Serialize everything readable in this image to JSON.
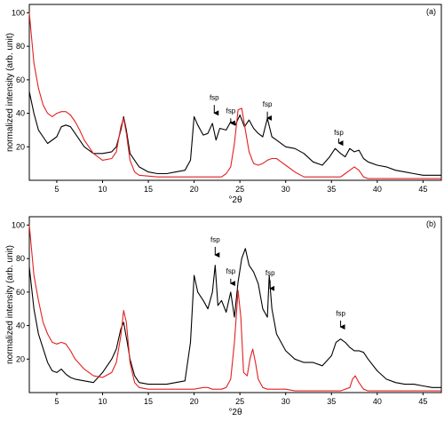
{
  "chart_data": [
    {
      "type": "line",
      "panel_label": "(a)",
      "xlabel": "°2θ",
      "ylabel": "normalized intensity (arb. unit)",
      "xlim": [
        2,
        47
      ],
      "ylim": [
        0,
        105
      ],
      "xticks": [
        "5",
        "10",
        "15",
        "20",
        "25",
        "30",
        "35",
        "40",
        "45"
      ],
      "yticks": [
        "20",
        "40",
        "60",
        "80",
        "100"
      ],
      "grid": false,
      "series": [
        {
          "color": "#000000",
          "x": [
            2,
            2.5,
            3,
            4,
            5,
            5.5,
            6,
            6.5,
            7,
            8,
            9,
            10,
            11,
            11.5,
            12,
            12.3,
            12.6,
            13,
            14,
            15,
            16,
            17,
            18,
            19,
            19.6,
            20,
            20.4,
            21,
            21.5,
            22,
            22.4,
            22.8,
            23.5,
            24,
            24.5,
            25,
            25.5,
            26,
            26.5,
            27,
            27.5,
            28,
            28.5,
            29,
            30,
            31,
            32,
            33,
            34,
            34.8,
            35.4,
            36,
            36.5,
            37,
            37.5,
            38,
            38.5,
            39,
            40,
            41,
            42,
            43,
            44,
            45,
            46,
            47
          ],
          "y": [
            53,
            40,
            30,
            22,
            26,
            32,
            33,
            32,
            28,
            20,
            16,
            16,
            17,
            20,
            30,
            38,
            30,
            16,
            8,
            5,
            4,
            4,
            5,
            6,
            12,
            38,
            33,
            27,
            28,
            34,
            24,
            31,
            30,
            35,
            33,
            39,
            32,
            36,
            31,
            28,
            26,
            37,
            26,
            24,
            20,
            19,
            16,
            11,
            9,
            14,
            19,
            16,
            14,
            19,
            17,
            18,
            13,
            11,
            9,
            8,
            6,
            5,
            4,
            3,
            3,
            3
          ]
        },
        {
          "color": "#e32020",
          "x": [
            2,
            2.5,
            3,
            3.5,
            4,
            4.5,
            5,
            5.5,
            6,
            6.5,
            7,
            7.5,
            8,
            9,
            10,
            11,
            11.5,
            12,
            12.3,
            12.6,
            13,
            13.5,
            14,
            16,
            18,
            20,
            22,
            23,
            23.5,
            24,
            24.4,
            24.8,
            25.2,
            25.6,
            26,
            26.5,
            27,
            27.5,
            28,
            28.5,
            29,
            29.5,
            30,
            31,
            32,
            33,
            34,
            35,
            36,
            36.5,
            37,
            37.5,
            38,
            38.5,
            39,
            40,
            42,
            44,
            47
          ],
          "y": [
            100,
            70,
            55,
            45,
            40,
            38,
            40,
            41,
            41,
            39,
            35,
            30,
            24,
            16,
            12,
            13,
            17,
            32,
            37,
            28,
            12,
            5,
            3,
            2,
            2,
            2,
            2,
            2,
            4,
            8,
            22,
            42,
            43,
            30,
            17,
            10,
            9,
            10,
            12,
            13,
            13,
            11,
            9,
            5,
            2,
            2,
            2,
            2,
            2,
            4,
            6,
            8,
            6,
            2,
            1,
            1,
            1,
            1,
            1
          ]
        }
      ],
      "annotations": [
        {
          "text": "fsp",
          "x": 22.2,
          "y_text": 48,
          "y_arrow_start": 45,
          "y_arrow_end": 37
        },
        {
          "text": "fsp",
          "x": 24.0,
          "y_text": 40,
          "y_arrow_start": 37,
          "y_arrow_end": 31
        },
        {
          "text": "fsp",
          "x": 28.0,
          "y_text": 44,
          "y_arrow_start": 41,
          "y_arrow_end": 34
        },
        {
          "text": "fsp",
          "x": 35.8,
          "y_text": 27,
          "y_arrow_start": 25,
          "y_arrow_end": 19
        }
      ]
    },
    {
      "type": "line",
      "panel_label": "(b)",
      "xlabel": "°2θ",
      "ylabel": "normalized intensity (arb. unit)",
      "xlim": [
        2,
        47
      ],
      "ylim": [
        0,
        105
      ],
      "xticks": [
        "5",
        "10",
        "15",
        "20",
        "25",
        "30",
        "35",
        "40",
        "45"
      ],
      "yticks": [
        "20",
        "40",
        "60",
        "80",
        "100"
      ],
      "grid": false,
      "series": [
        {
          "color": "#000000",
          "x": [
            2,
            2.5,
            3,
            4,
            4.5,
            5,
            5.5,
            6,
            6.5,
            7,
            8,
            9,
            10,
            11,
            11.5,
            12,
            12.3,
            12.7,
            13,
            13.5,
            14,
            15,
            16,
            17,
            18,
            19,
            19.6,
            20,
            20.4,
            21,
            21.5,
            22,
            22.3,
            22.6,
            23,
            23.5,
            24,
            24.4,
            24.8,
            25.2,
            25.6,
            26,
            26.5,
            27,
            27.5,
            28,
            28.2,
            28.5,
            29,
            30,
            31,
            32,
            33,
            34,
            35,
            35.5,
            36,
            36.5,
            37,
            37.5,
            38,
            38.5,
            39,
            40,
            41,
            42,
            43,
            44,
            45,
            46,
            47
          ],
          "y": [
            75,
            50,
            35,
            18,
            13,
            12,
            14,
            11,
            9,
            8,
            7,
            6,
            12,
            20,
            26,
            38,
            42,
            30,
            20,
            10,
            6,
            5,
            5,
            5,
            6,
            7,
            30,
            70,
            60,
            55,
            50,
            60,
            76,
            52,
            55,
            48,
            60,
            45,
            66,
            80,
            86,
            76,
            72,
            65,
            50,
            45,
            70,
            50,
            35,
            25,
            20,
            18,
            18,
            16,
            22,
            30,
            32,
            30,
            27,
            25,
            25,
            24,
            20,
            13,
            8,
            6,
            5,
            5,
            4,
            3,
            3
          ]
        },
        {
          "color": "#e32020",
          "x": [
            2,
            2.5,
            3,
            3.5,
            4,
            4.5,
            5,
            5.5,
            6,
            6.5,
            7,
            8,
            9,
            10,
            11,
            11.5,
            12,
            12.3,
            12.6,
            13,
            13.5,
            14,
            15,
            17,
            19,
            20,
            21,
            21.5,
            22,
            23,
            23.5,
            24,
            24.4,
            24.8,
            25.1,
            25.4,
            25.8,
            26.1,
            26.4,
            26.7,
            27,
            27.5,
            28,
            29,
            30,
            31,
            32,
            34,
            36,
            37,
            37.3,
            37.6,
            38,
            38.5,
            39,
            40,
            42,
            44,
            47
          ],
          "y": [
            100,
            70,
            55,
            42,
            35,
            30,
            29,
            30,
            29,
            25,
            20,
            14,
            10,
            9,
            12,
            18,
            34,
            49,
            42,
            18,
            6,
            3,
            2,
            2,
            2,
            2,
            3,
            3,
            2,
            2,
            3,
            8,
            30,
            61,
            45,
            12,
            10,
            20,
            26,
            18,
            8,
            3,
            2,
            2,
            2,
            1,
            1,
            1,
            1,
            3,
            8,
            10,
            6,
            2,
            1,
            1,
            1,
            1,
            1
          ]
        }
      ],
      "annotations": [
        {
          "text": "fsp",
          "x": 22.3,
          "y_text": 90,
          "y_arrow_start": 87,
          "y_arrow_end": 79
        },
        {
          "text": "fsp",
          "x": 24.0,
          "y_text": 71,
          "y_arrow_start": 68,
          "y_arrow_end": 62
        },
        {
          "text": "fsp",
          "x": 28.3,
          "y_text": 70,
          "y_arrow_start": 67,
          "y_arrow_end": 59
        },
        {
          "text": "fsp",
          "x": 36.0,
          "y_text": 46,
          "y_arrow_start": 43,
          "y_arrow_end": 36
        }
      ]
    }
  ]
}
